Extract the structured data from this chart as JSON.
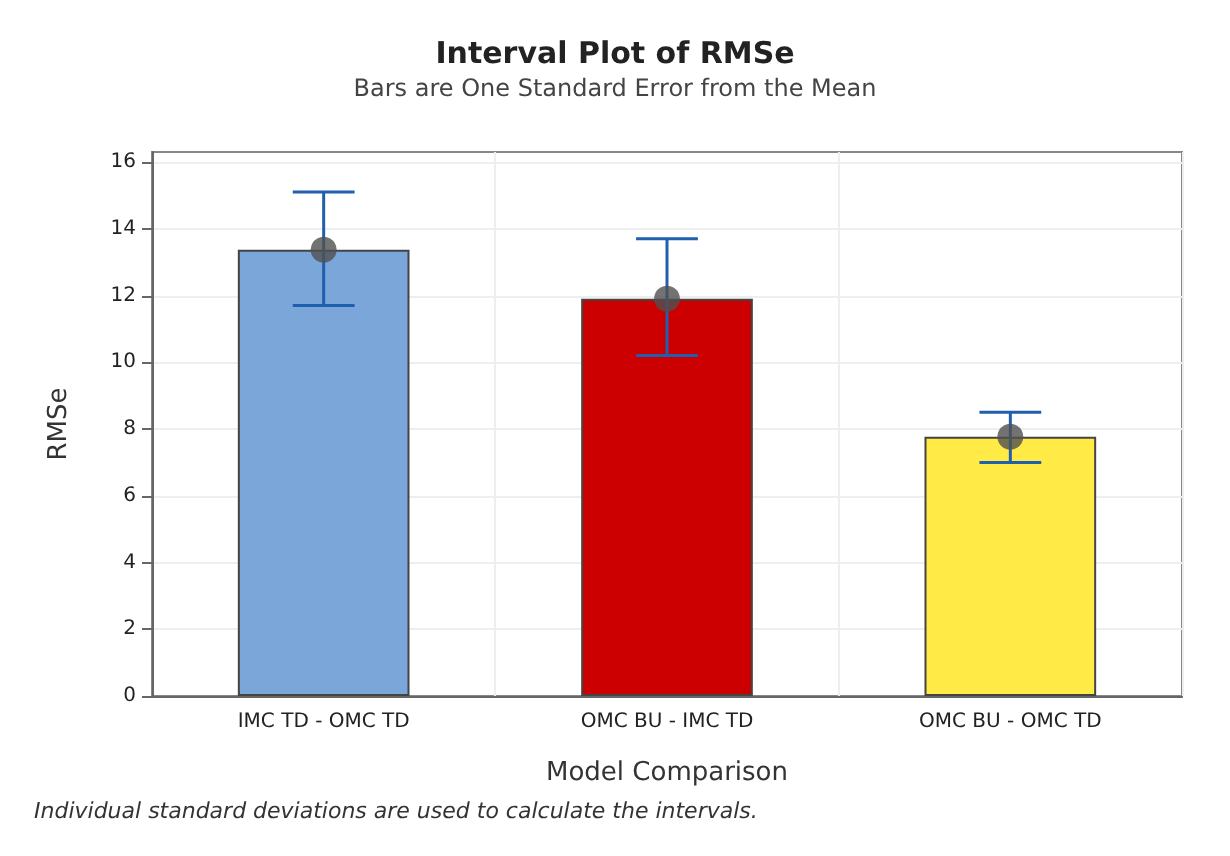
{
  "chart_data": {
    "type": "bar",
    "title": "Interval Plot of RMSe",
    "subtitle": "Bars are One Standard Error from the Mean",
    "xlabel": "Model Comparison",
    "ylabel": "RMSe",
    "categories": [
      "IMC TD - OMC TD",
      "OMC BU - IMC TD",
      "OMC BU - OMC TD"
    ],
    "series": [
      {
        "colors": [
          "#7ba6d9",
          "#cc0000",
          "#ffea46"
        ],
        "values": [
          13.37,
          11.9,
          7.77
        ],
        "errors": [
          [
            11.7,
            15.1
          ],
          [
            10.2,
            13.7
          ],
          [
            7.0,
            8.5
          ]
        ]
      },
      {
        "type": "scatter",
        "color": "#505050",
        "x": [
          "IMC TD - OMC TD",
          "OMC BU - IMC TD",
          "OMC BU - OMC TD"
        ],
        "values": [
          13.37,
          11.9,
          7.77
        ]
      }
    ],
    "ylim": [
      0,
      16.3
    ],
    "yticks": [
      0,
      2,
      4,
      6,
      8,
      10,
      12,
      14,
      16
    ],
    "grid": true,
    "marker": "circle",
    "annotations": [
      "Individual standard deviations are used to calculate the intervals."
    ]
  }
}
